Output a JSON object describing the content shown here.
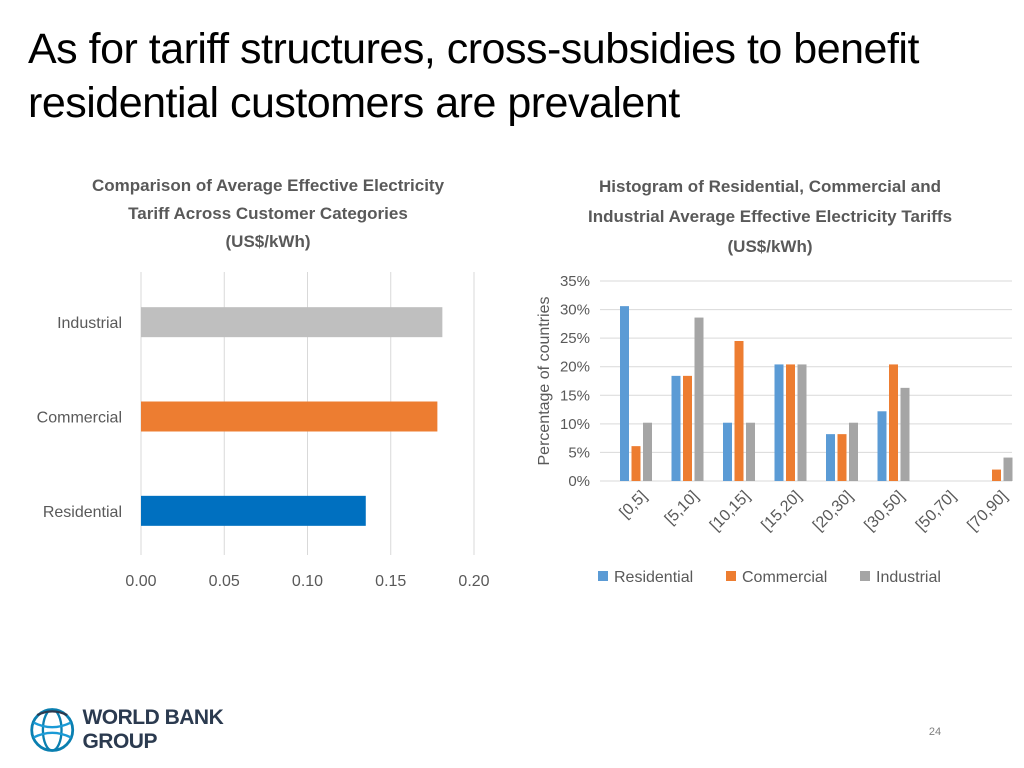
{
  "slide": {
    "title": "As for tariff structures, cross-subsidies to benefit residential customers are prevalent",
    "page_number": "24",
    "logo_text": "WORLD BANK GROUP"
  },
  "colors": {
    "residential": "#0070C0",
    "commercial": "#ED7D31",
    "industrial": "#BFBFBF",
    "industrial_hist": "#A5A5A5",
    "hist_residential": "#5B9BD5",
    "gridline": "#D9D9D9",
    "axis_text": "#595959"
  },
  "chart_data": [
    {
      "type": "bar",
      "orientation": "horizontal",
      "title": "Comparison of Average Effective Electricity Tariff Across Customer Categories (US$/kWh)",
      "categories": [
        "Residential",
        "Commercial",
        "Industrial"
      ],
      "values": [
        0.135,
        0.178,
        0.181
      ],
      "xlim": [
        0,
        0.2
      ],
      "x_ticks": [
        "0.00",
        "0.05",
        "0.10",
        "0.15",
        "0.20"
      ],
      "x_tick_values": [
        0,
        0.05,
        0.1,
        0.15,
        0.2
      ],
      "grid": true,
      "legend": "none"
    },
    {
      "type": "bar",
      "orientation": "vertical",
      "title": "Histogram of Residential, Commercial and Industrial  Average Effective Electricity Tariffs (US$/kWh)",
      "ylabel": "Percentage of countries",
      "categories": [
        "[0,5]",
        "[5,10]",
        "[10,15]",
        "[15,20]",
        "[20,30]",
        "[30,50]",
        "[50,70]",
        "[70,90]"
      ],
      "series": [
        {
          "name": "Residential",
          "values": [
            30.6,
            18.4,
            10.2,
            20.4,
            8.2,
            12.2,
            0,
            0
          ]
        },
        {
          "name": "Commercial",
          "values": [
            6.1,
            18.4,
            24.5,
            20.4,
            8.2,
            20.4,
            0,
            2.0
          ]
        },
        {
          "name": "Industrial",
          "values": [
            10.2,
            28.6,
            10.2,
            20.4,
            10.2,
            16.3,
            0,
            4.1
          ]
        }
      ],
      "ylim": [
        0,
        35
      ],
      "y_ticks": [
        "0%",
        "5%",
        "10%",
        "15%",
        "20%",
        "25%",
        "30%",
        "35%"
      ],
      "y_tick_values": [
        0,
        5,
        10,
        15,
        20,
        25,
        30,
        35
      ],
      "grid": true,
      "legend": "bottom"
    }
  ]
}
